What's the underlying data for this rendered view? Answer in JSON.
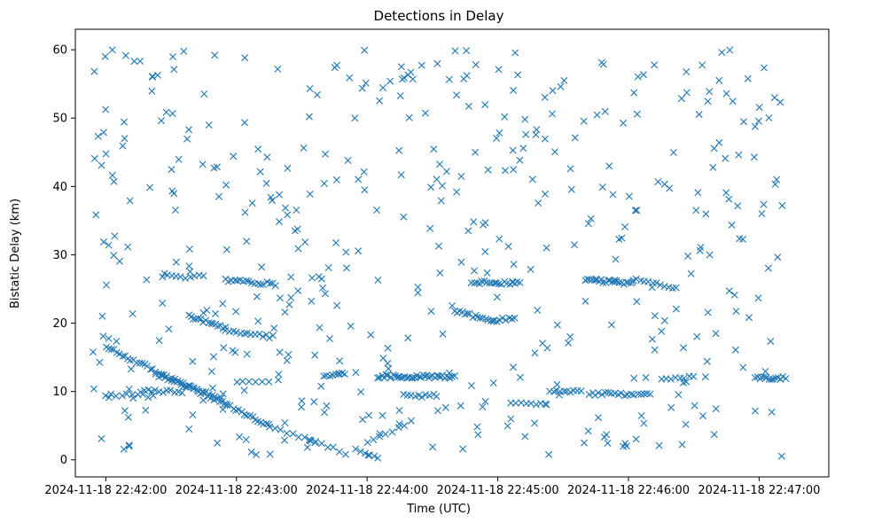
{
  "chart_data": {
    "type": "scatter",
    "title": "Detections in Delay",
    "xlabel": "Time (UTC)",
    "ylabel": "Bistatic Delay (km)",
    "marker": "x",
    "marker_color": "#1f77b4",
    "x_unit": "seconds since 2024-11-18 22:42:00",
    "xlim": [
      -14,
      332
    ],
    "ylim": [
      -2.5,
      63
    ],
    "x_ticks": [
      {
        "value": 0,
        "label": "2024-11-18 22:42:00"
      },
      {
        "value": 60,
        "label": "2024-11-18 22:43:00"
      },
      {
        "value": 120,
        "label": "2024-11-18 22:44:00"
      },
      {
        "value": 180,
        "label": "2024-11-18 22:45:00"
      },
      {
        "value": 240,
        "label": "2024-11-18 22:46:00"
      },
      {
        "value": 300,
        "label": "2024-11-18 22:47:00"
      }
    ],
    "y_ticks": [
      {
        "value": 0,
        "label": "0"
      },
      {
        "value": 10,
        "label": "10"
      },
      {
        "value": 20,
        "label": "20"
      },
      {
        "value": 30,
        "label": "30"
      },
      {
        "value": 40,
        "label": "40"
      },
      {
        "value": 50,
        "label": "50"
      },
      {
        "value": 60,
        "label": "60"
      }
    ],
    "series": [
      {
        "name": "detections",
        "segments": [
          {
            "t0": 0,
            "t1": 75,
            "d0": 16.5,
            "d1": 5.0,
            "n": 60
          },
          {
            "t0": 38,
            "t1": 55,
            "d0": 21.0,
            "d1": 19.2,
            "n": 16
          },
          {
            "t0": 55,
            "t1": 77,
            "d0": 18.8,
            "d1": 18.0,
            "n": 14
          },
          {
            "t0": 55,
            "t1": 78,
            "d0": 26.3,
            "d1": 25.7,
            "n": 18
          },
          {
            "t0": 23,
            "t1": 53,
            "d0": 12.5,
            "d1": 9.0,
            "n": 22
          },
          {
            "t0": 0,
            "t1": 22,
            "d0": 9.4,
            "d1": 9.4,
            "n": 10
          },
          {
            "t0": 16,
            "t1": 35,
            "d0": 10.0,
            "d1": 10.0,
            "n": 12
          },
          {
            "t0": 26,
            "t1": 45,
            "d0": 26.8,
            "d1": 26.8,
            "n": 10
          },
          {
            "t0": 75,
            "t1": 110,
            "d0": 5.0,
            "d1": 1.0,
            "n": 14
          },
          {
            "t0": 100,
            "t1": 110,
            "d0": 12.5,
            "d1": 12.5,
            "n": 8
          },
          {
            "t0": 115,
            "t1": 125,
            "d0": 1.5,
            "d1": 0.5,
            "n": 6
          },
          {
            "t0": 125,
            "t1": 160,
            "d0": 12.2,
            "d1": 12.2,
            "n": 40
          },
          {
            "t0": 137,
            "t1": 152,
            "d0": 9.4,
            "d1": 9.4,
            "n": 10
          },
          {
            "t0": 160,
            "t1": 178,
            "d0": 21.8,
            "d1": 20.2,
            "n": 16
          },
          {
            "t0": 178,
            "t1": 188,
            "d0": 20.4,
            "d1": 20.7,
            "n": 8
          },
          {
            "t0": 168,
            "t1": 190,
            "d0": 26.0,
            "d1": 25.8,
            "n": 20
          },
          {
            "t0": 186,
            "t1": 202,
            "d0": 8.3,
            "d1": 8.3,
            "n": 8
          },
          {
            "t0": 204,
            "t1": 218,
            "d0": 10.0,
            "d1": 10.0,
            "n": 10
          },
          {
            "t0": 220,
            "t1": 242,
            "d0": 26.3,
            "d1": 25.8,
            "n": 22
          },
          {
            "t0": 242,
            "t1": 262,
            "d0": 26.5,
            "d1": 25.0,
            "n": 12
          },
          {
            "t0": 222,
            "t1": 250,
            "d0": 9.6,
            "d1": 9.6,
            "n": 20
          },
          {
            "t0": 255,
            "t1": 270,
            "d0": 12.0,
            "d1": 12.0,
            "n": 8
          },
          {
            "t0": 298,
            "t1": 312,
            "d0": 12.0,
            "d1": 12.0,
            "n": 14
          },
          {
            "t0": 120,
            "t1": 140,
            "d0": 2.5,
            "d1": 5.5,
            "n": 8
          },
          {
            "t0": 60,
            "t1": 75,
            "d0": 11.5,
            "d1": 11.5,
            "n": 6
          }
        ],
        "background_count": 460,
        "background_t_range": [
          -8,
          311
        ],
        "background_d_range": [
          0.5,
          60
        ]
      }
    ]
  }
}
